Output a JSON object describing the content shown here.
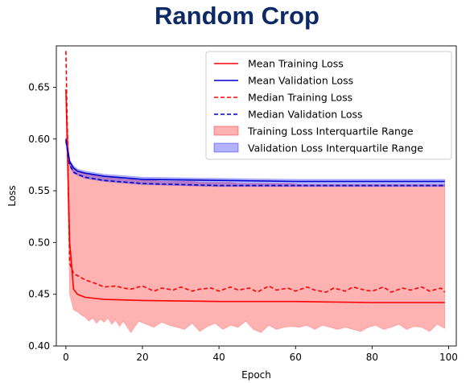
{
  "header": {
    "title": "Random Crop"
  },
  "chart_data": {
    "type": "line",
    "title": "",
    "xlabel": "Epoch",
    "ylabel": "Loss",
    "xlim": [
      -2.5,
      102
    ],
    "ylim": [
      0.4,
      0.69
    ],
    "xticks": [
      0,
      20,
      40,
      60,
      80,
      100
    ],
    "yticks": [
      0.4,
      0.45,
      0.5,
      0.55,
      0.6,
      0.65
    ],
    "xtick_labels": [
      "0",
      "20",
      "40",
      "60",
      "80",
      "100"
    ],
    "ytick_labels": [
      "0.40",
      "0.45",
      "0.50",
      "0.55",
      "0.60",
      "0.65"
    ],
    "legend_position": "top-right",
    "grid": false,
    "series": [
      {
        "name": "Mean Training Loss",
        "color": "#ff0000",
        "style": "solid",
        "x": [
          0,
          1,
          2,
          3,
          5,
          10,
          20,
          40,
          60,
          80,
          99
        ],
        "y": [
          0.648,
          0.5,
          0.455,
          0.45,
          0.447,
          0.445,
          0.444,
          0.443,
          0.443,
          0.442,
          0.442
        ]
      },
      {
        "name": "Mean Validation Loss",
        "color": "#0000cc",
        "style": "solid",
        "x": [
          0,
          1,
          2,
          3,
          5,
          10,
          20,
          40,
          60,
          80,
          99
        ],
        "y": [
          0.6,
          0.578,
          0.572,
          0.569,
          0.567,
          0.564,
          0.561,
          0.56,
          0.559,
          0.559,
          0.559
        ]
      },
      {
        "name": "Median Training Loss",
        "color": "#ff0000",
        "style": "dashed",
        "x": [
          0,
          1,
          2,
          3,
          5,
          8,
          10,
          13,
          15,
          17,
          20,
          23,
          25,
          28,
          30,
          33,
          35,
          38,
          40,
          43,
          45,
          48,
          50,
          53,
          55,
          58,
          60,
          63,
          65,
          68,
          70,
          73,
          75,
          78,
          80,
          83,
          85,
          88,
          90,
          93,
          95,
          98,
          99
        ],
        "y": [
          0.685,
          0.48,
          0.47,
          0.468,
          0.464,
          0.46,
          0.457,
          0.458,
          0.456,
          0.455,
          0.458,
          0.453,
          0.456,
          0.454,
          0.457,
          0.453,
          0.455,
          0.456,
          0.453,
          0.457,
          0.454,
          0.456,
          0.452,
          0.458,
          0.454,
          0.456,
          0.453,
          0.457,
          0.454,
          0.452,
          0.456,
          0.453,
          0.457,
          0.454,
          0.453,
          0.457,
          0.452,
          0.456,
          0.454,
          0.457,
          0.453,
          0.456,
          0.452
        ]
      },
      {
        "name": "Median Validation Loss",
        "color": "#0000cc",
        "style": "dashed",
        "x": [
          0,
          1,
          2,
          3,
          5,
          10,
          20,
          40,
          60,
          80,
          99
        ],
        "y": [
          0.598,
          0.575,
          0.568,
          0.566,
          0.563,
          0.56,
          0.557,
          0.555,
          0.555,
          0.555,
          0.555
        ]
      }
    ],
    "bands": [
      {
        "name": "Training Loss Interquartile Range",
        "color": "#ff0000",
        "opacity": 0.3,
        "x": [
          0,
          1,
          2,
          3,
          4,
          5,
          6,
          7,
          8,
          9,
          10,
          11,
          12,
          13,
          14,
          15,
          17,
          19,
          21,
          23,
          25,
          27,
          29,
          31,
          33,
          35,
          37,
          39,
          41,
          43,
          45,
          47,
          49,
          51,
          53,
          55,
          57,
          59,
          61,
          63,
          65,
          67,
          69,
          71,
          73,
          75,
          77,
          79,
          81,
          83,
          85,
          87,
          89,
          91,
          93,
          95,
          97,
          99
        ],
        "lower": [
          0.64,
          0.45,
          0.435,
          0.433,
          0.43,
          0.428,
          0.424,
          0.427,
          0.422,
          0.426,
          0.423,
          0.427,
          0.421,
          0.425,
          0.419,
          0.424,
          0.413,
          0.424,
          0.421,
          0.418,
          0.423,
          0.42,
          0.418,
          0.416,
          0.422,
          0.414,
          0.419,
          0.422,
          0.416,
          0.42,
          0.418,
          0.424,
          0.416,
          0.413,
          0.42,
          0.416,
          0.418,
          0.419,
          0.418,
          0.42,
          0.416,
          0.42,
          0.418,
          0.416,
          0.418,
          0.416,
          0.414,
          0.418,
          0.42,
          0.416,
          0.418,
          0.421,
          0.416,
          0.419,
          0.418,
          0.414,
          0.421,
          0.417
        ],
        "upper": [
          0.64,
          0.578,
          0.571,
          0.569,
          0.568,
          0.567,
          0.566,
          0.565,
          0.565,
          0.564,
          0.564,
          0.563,
          0.563,
          0.562,
          0.562,
          0.561,
          0.561,
          0.56,
          0.56,
          0.56,
          0.559,
          0.559,
          0.559,
          0.559,
          0.559,
          0.558,
          0.558,
          0.558,
          0.558,
          0.558,
          0.557,
          0.557,
          0.557,
          0.557,
          0.557,
          0.557,
          0.557,
          0.557,
          0.556,
          0.556,
          0.556,
          0.556,
          0.556,
          0.556,
          0.556,
          0.556,
          0.556,
          0.556,
          0.556,
          0.556,
          0.556,
          0.556,
          0.556,
          0.556,
          0.556,
          0.556,
          0.556,
          0.556
        ]
      },
      {
        "name": "Validation Loss Interquartile Range",
        "color": "#0000ff",
        "opacity": 0.3,
        "x": [
          0,
          1,
          2,
          3,
          5,
          10,
          20,
          40,
          60,
          80,
          99
        ],
        "lower": [
          0.596,
          0.574,
          0.567,
          0.565,
          0.562,
          0.559,
          0.556,
          0.554,
          0.554,
          0.554,
          0.554
        ],
        "upper": [
          0.602,
          0.58,
          0.574,
          0.571,
          0.569,
          0.566,
          0.563,
          0.562,
          0.561,
          0.561,
          0.561
        ]
      }
    ]
  }
}
